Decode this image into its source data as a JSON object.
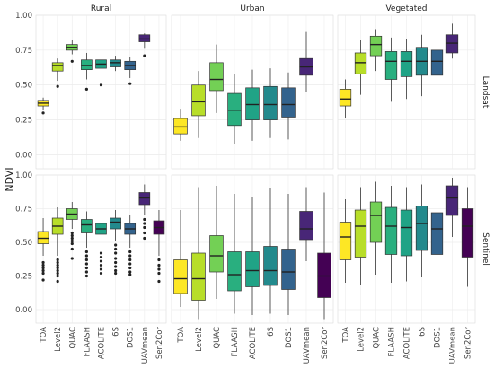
{
  "chart_data": {
    "type": "box",
    "ylabel": "NDVI",
    "xlabel": "",
    "ylim": [
      -0.1,
      1.0
    ],
    "yticks": [
      "0.00",
      "0.25",
      "0.50",
      "0.75",
      "1.00"
    ],
    "ytick_values": [
      0,
      0.25,
      0.5,
      0.75,
      1.0
    ],
    "grid": true,
    "categories": [
      "TOA",
      "Level2",
      "QUAC",
      "FLAASH",
      "ACOLITE",
      "6S",
      "DOS1",
      "UAVmean",
      "Sen2Cor"
    ],
    "colors": {
      "TOA": "#FDE725",
      "Level2": "#B8DE29",
      "QUAC": "#73D055",
      "FLAASH": "#29AF7F",
      "ACOLITE": "#20A386",
      "6S": "#238A8D",
      "DOS1": "#33638D",
      "UAVmean": "#482677",
      "Sen2Cor": "#440154"
    },
    "columns": [
      "Rural",
      "Urban",
      "Vegetated"
    ],
    "rows": [
      "Landsat",
      "Sentinel"
    ],
    "panels": [
      {
        "row": "Landsat",
        "column": "Rural",
        "boxes": [
          {
            "category": "TOA",
            "whisker_low": 0.32,
            "q1": 0.35,
            "median": 0.37,
            "q3": 0.39,
            "whisker_high": 0.41,
            "outliers": [
              0.3
            ]
          },
          {
            "category": "Level2",
            "whisker_low": 0.53,
            "q1": 0.6,
            "median": 0.64,
            "q3": 0.66,
            "whisker_high": 0.69,
            "outliers": [
              0.49
            ]
          },
          {
            "category": "QUAC",
            "whisker_low": 0.72,
            "q1": 0.75,
            "median": 0.77,
            "q3": 0.79,
            "whisker_high": 0.82,
            "outliers": [
              0.67
            ]
          },
          {
            "category": "FLAASH",
            "whisker_low": 0.54,
            "q1": 0.61,
            "median": 0.64,
            "q3": 0.68,
            "whisker_high": 0.73,
            "outliers": [
              0.47
            ]
          },
          {
            "category": "ACOLITE",
            "whisker_low": 0.56,
            "q1": 0.62,
            "median": 0.65,
            "q3": 0.68,
            "whisker_high": 0.72,
            "outliers": [
              0.5
            ]
          },
          {
            "category": "6S",
            "whisker_low": 0.6,
            "q1": 0.63,
            "median": 0.66,
            "q3": 0.68,
            "whisker_high": 0.71,
            "outliers": []
          },
          {
            "category": "DOS1",
            "whisker_low": 0.55,
            "q1": 0.61,
            "median": 0.64,
            "q3": 0.67,
            "whisker_high": 0.7,
            "outliers": [
              0.51
            ]
          },
          {
            "category": "UAVmean",
            "whisker_low": 0.76,
            "q1": 0.81,
            "median": 0.83,
            "q3": 0.86,
            "whisker_high": 0.87,
            "outliers": [
              0.71
            ]
          }
        ]
      },
      {
        "row": "Landsat",
        "column": "Urban",
        "boxes": [
          {
            "category": "TOA",
            "whisker_low": 0.1,
            "q1": 0.15,
            "median": 0.2,
            "q3": 0.26,
            "whisker_high": 0.33,
            "outliers": []
          },
          {
            "category": "Level2",
            "whisker_low": 0.12,
            "q1": 0.28,
            "median": 0.38,
            "q3": 0.5,
            "whisker_high": 0.6,
            "outliers": []
          },
          {
            "category": "QUAC",
            "whisker_low": 0.3,
            "q1": 0.46,
            "median": 0.54,
            "q3": 0.66,
            "whisker_high": 0.79,
            "outliers": []
          },
          {
            "category": "FLAASH",
            "whisker_low": 0.08,
            "q1": 0.21,
            "median": 0.32,
            "q3": 0.44,
            "whisker_high": 0.58,
            "outliers": []
          },
          {
            "category": "ACOLITE",
            "whisker_low": 0.1,
            "q1": 0.25,
            "median": 0.36,
            "q3": 0.48,
            "whisker_high": 0.61,
            "outliers": []
          },
          {
            "category": "6S",
            "whisker_low": 0.12,
            "q1": 0.25,
            "median": 0.36,
            "q3": 0.49,
            "whisker_high": 0.62,
            "outliers": []
          },
          {
            "category": "DOS1",
            "whisker_low": 0.11,
            "q1": 0.27,
            "median": 0.36,
            "q3": 0.48,
            "whisker_high": 0.59,
            "outliers": []
          },
          {
            "category": "UAVmean",
            "whisker_low": 0.45,
            "q1": 0.57,
            "median": 0.63,
            "q3": 0.69,
            "whisker_high": 0.88,
            "outliers": []
          }
        ]
      },
      {
        "row": "Landsat",
        "column": "Vegetated",
        "boxes": [
          {
            "category": "TOA",
            "whisker_low": 0.26,
            "q1": 0.35,
            "median": 0.4,
            "q3": 0.47,
            "whisker_high": 0.54,
            "outliers": []
          },
          {
            "category": "Level2",
            "whisker_low": 0.43,
            "q1": 0.58,
            "median": 0.66,
            "q3": 0.73,
            "whisker_high": 0.82,
            "outliers": []
          },
          {
            "category": "QUAC",
            "whisker_low": 0.6,
            "q1": 0.71,
            "median": 0.79,
            "q3": 0.85,
            "whisker_high": 0.9,
            "outliers": []
          },
          {
            "category": "FLAASH",
            "whisker_low": 0.38,
            "q1": 0.54,
            "median": 0.67,
            "q3": 0.74,
            "whisker_high": 0.84,
            "outliers": []
          },
          {
            "category": "ACOLITE",
            "whisker_low": 0.4,
            "q1": 0.56,
            "median": 0.67,
            "q3": 0.74,
            "whisker_high": 0.83,
            "outliers": []
          },
          {
            "category": "6S",
            "whisker_low": 0.42,
            "q1": 0.57,
            "median": 0.67,
            "q3": 0.77,
            "whisker_high": 0.86,
            "outliers": []
          },
          {
            "category": "DOS1",
            "whisker_low": 0.44,
            "q1": 0.57,
            "median": 0.67,
            "q3": 0.75,
            "whisker_high": 0.84,
            "outliers": []
          },
          {
            "category": "UAVmean",
            "whisker_low": 0.69,
            "q1": 0.73,
            "median": 0.8,
            "q3": 0.86,
            "whisker_high": 0.94,
            "outliers": []
          }
        ]
      },
      {
        "row": "Sentinel",
        "column": "Rural",
        "boxes": [
          {
            "category": "TOA",
            "whisker_low": 0.4,
            "q1": 0.49,
            "median": 0.53,
            "q3": 0.58,
            "whisker_high": 0.68,
            "outliers": [
              0.35,
              0.33,
              0.31,
              0.29,
              0.27,
              0.22
            ]
          },
          {
            "category": "Level2",
            "whisker_low": 0.4,
            "q1": 0.56,
            "median": 0.62,
            "q3": 0.68,
            "whisker_high": 0.76,
            "outliers": [
              0.37,
              0.35,
              0.33,
              0.31,
              0.29,
              0.27,
              0.25,
              0.21
            ]
          },
          {
            "category": "QUAC",
            "whisker_low": 0.6,
            "q1": 0.67,
            "median": 0.71,
            "q3": 0.75,
            "whisker_high": 0.8,
            "outliers": [
              0.57,
              0.55,
              0.53,
              0.51,
              0.49,
              0.45,
              0.38
            ]
          },
          {
            "category": "FLAASH",
            "whisker_low": 0.46,
            "q1": 0.57,
            "median": 0.63,
            "q3": 0.67,
            "whisker_high": 0.73,
            "outliers": [
              0.43,
              0.4,
              0.37,
              0.34,
              0.31,
              0.28,
              0.25
            ]
          },
          {
            "category": "ACOLITE",
            "whisker_low": 0.45,
            "q1": 0.56,
            "median": 0.6,
            "q3": 0.64,
            "whisker_high": 0.7,
            "outliers": [
              0.42,
              0.39,
              0.36,
              0.33,
              0.3,
              0.27
            ]
          },
          {
            "category": "6S",
            "whisker_low": 0.51,
            "q1": 0.6,
            "median": 0.65,
            "q3": 0.68,
            "whisker_high": 0.74,
            "outliers": [
              0.48,
              0.45,
              0.42,
              0.38,
              0.35,
              0.32,
              0.29,
              0.27
            ]
          },
          {
            "category": "DOS1",
            "whisker_low": 0.46,
            "q1": 0.56,
            "median": 0.6,
            "q3": 0.64,
            "whisker_high": 0.7,
            "outliers": [
              0.43,
              0.4,
              0.37,
              0.34,
              0.31,
              0.28,
              0.26
            ]
          },
          {
            "category": "UAVmean",
            "whisker_low": 0.7,
            "q1": 0.78,
            "median": 0.83,
            "q3": 0.87,
            "whisker_high": 0.93,
            "outliers": [
              0.67,
              0.64,
              0.61,
              0.57,
              0.53
            ]
          },
          {
            "category": "Sen2Cor",
            "whisker_low": 0.4,
            "q1": 0.56,
            "median": 0.61,
            "q3": 0.66,
            "whisker_high": 0.74,
            "outliers": [
              0.37,
              0.33,
              0.3,
              0.27,
              0.21
            ]
          }
        ]
      },
      {
        "row": "Sentinel",
        "column": "Urban",
        "boxes": [
          {
            "category": "TOA",
            "whisker_low": 0.02,
            "q1": 0.12,
            "median": 0.23,
            "q3": 0.37,
            "whisker_high": 0.74,
            "outliers": []
          },
          {
            "category": "Level2",
            "whisker_low": -0.07,
            "q1": 0.07,
            "median": 0.23,
            "q3": 0.42,
            "whisker_high": 0.91,
            "outliers": []
          },
          {
            "category": "QUAC",
            "whisker_low": 0.08,
            "q1": 0.28,
            "median": 0.4,
            "q3": 0.55,
            "whisker_high": 0.92,
            "outliers": []
          },
          {
            "category": "FLAASH",
            "whisker_low": -0.03,
            "q1": 0.14,
            "median": 0.26,
            "q3": 0.43,
            "whisker_high": 0.86,
            "outliers": []
          },
          {
            "category": "ACOLITE",
            "whisker_low": -0.04,
            "q1": 0.17,
            "median": 0.29,
            "q3": 0.43,
            "whisker_high": 0.84,
            "outliers": []
          },
          {
            "category": "6S",
            "whisker_low": -0.03,
            "q1": 0.18,
            "median": 0.29,
            "q3": 0.47,
            "whisker_high": 0.9,
            "outliers": []
          },
          {
            "category": "DOS1",
            "whisker_low": -0.04,
            "q1": 0.15,
            "median": 0.28,
            "q3": 0.45,
            "whisker_high": 0.86,
            "outliers": []
          },
          {
            "category": "UAVmean",
            "whisker_low": 0.36,
            "q1": 0.52,
            "median": 0.6,
            "q3": 0.73,
            "whisker_high": 0.91,
            "outliers": []
          },
          {
            "category": "Sen2Cor",
            "whisker_low": -0.07,
            "q1": 0.09,
            "median": 0.25,
            "q3": 0.42,
            "whisker_high": 0.87,
            "outliers": []
          }
        ]
      },
      {
        "row": "Sentinel",
        "column": "Vegetated",
        "boxes": [
          {
            "category": "TOA",
            "whisker_low": 0.2,
            "q1": 0.37,
            "median": 0.54,
            "q3": 0.65,
            "whisker_high": 0.82,
            "outliers": []
          },
          {
            "category": "Level2",
            "whisker_low": 0.18,
            "q1": 0.39,
            "median": 0.62,
            "q3": 0.74,
            "whisker_high": 0.91,
            "outliers": []
          },
          {
            "category": "QUAC",
            "whisker_low": 0.26,
            "q1": 0.5,
            "median": 0.7,
            "q3": 0.8,
            "whisker_high": 0.95,
            "outliers": []
          },
          {
            "category": "FLAASH",
            "whisker_low": 0.2,
            "q1": 0.41,
            "median": 0.62,
            "q3": 0.76,
            "whisker_high": 0.92,
            "outliers": []
          },
          {
            "category": "ACOLITE",
            "whisker_low": 0.21,
            "q1": 0.4,
            "median": 0.61,
            "q3": 0.74,
            "whisker_high": 0.91,
            "outliers": []
          },
          {
            "category": "6S",
            "whisker_low": 0.24,
            "q1": 0.44,
            "median": 0.64,
            "q3": 0.77,
            "whisker_high": 0.93,
            "outliers": []
          },
          {
            "category": "DOS1",
            "whisker_low": 0.21,
            "q1": 0.41,
            "median": 0.6,
            "q3": 0.72,
            "whisker_high": 0.91,
            "outliers": []
          },
          {
            "category": "UAVmean",
            "whisker_low": 0.54,
            "q1": 0.7,
            "median": 0.83,
            "q3": 0.92,
            "whisker_high": 0.98,
            "outliers": []
          },
          {
            "category": "Sen2Cor",
            "whisker_low": 0.17,
            "q1": 0.39,
            "median": 0.62,
            "q3": 0.75,
            "whisker_high": 0.91,
            "outliers": []
          }
        ]
      }
    ]
  }
}
